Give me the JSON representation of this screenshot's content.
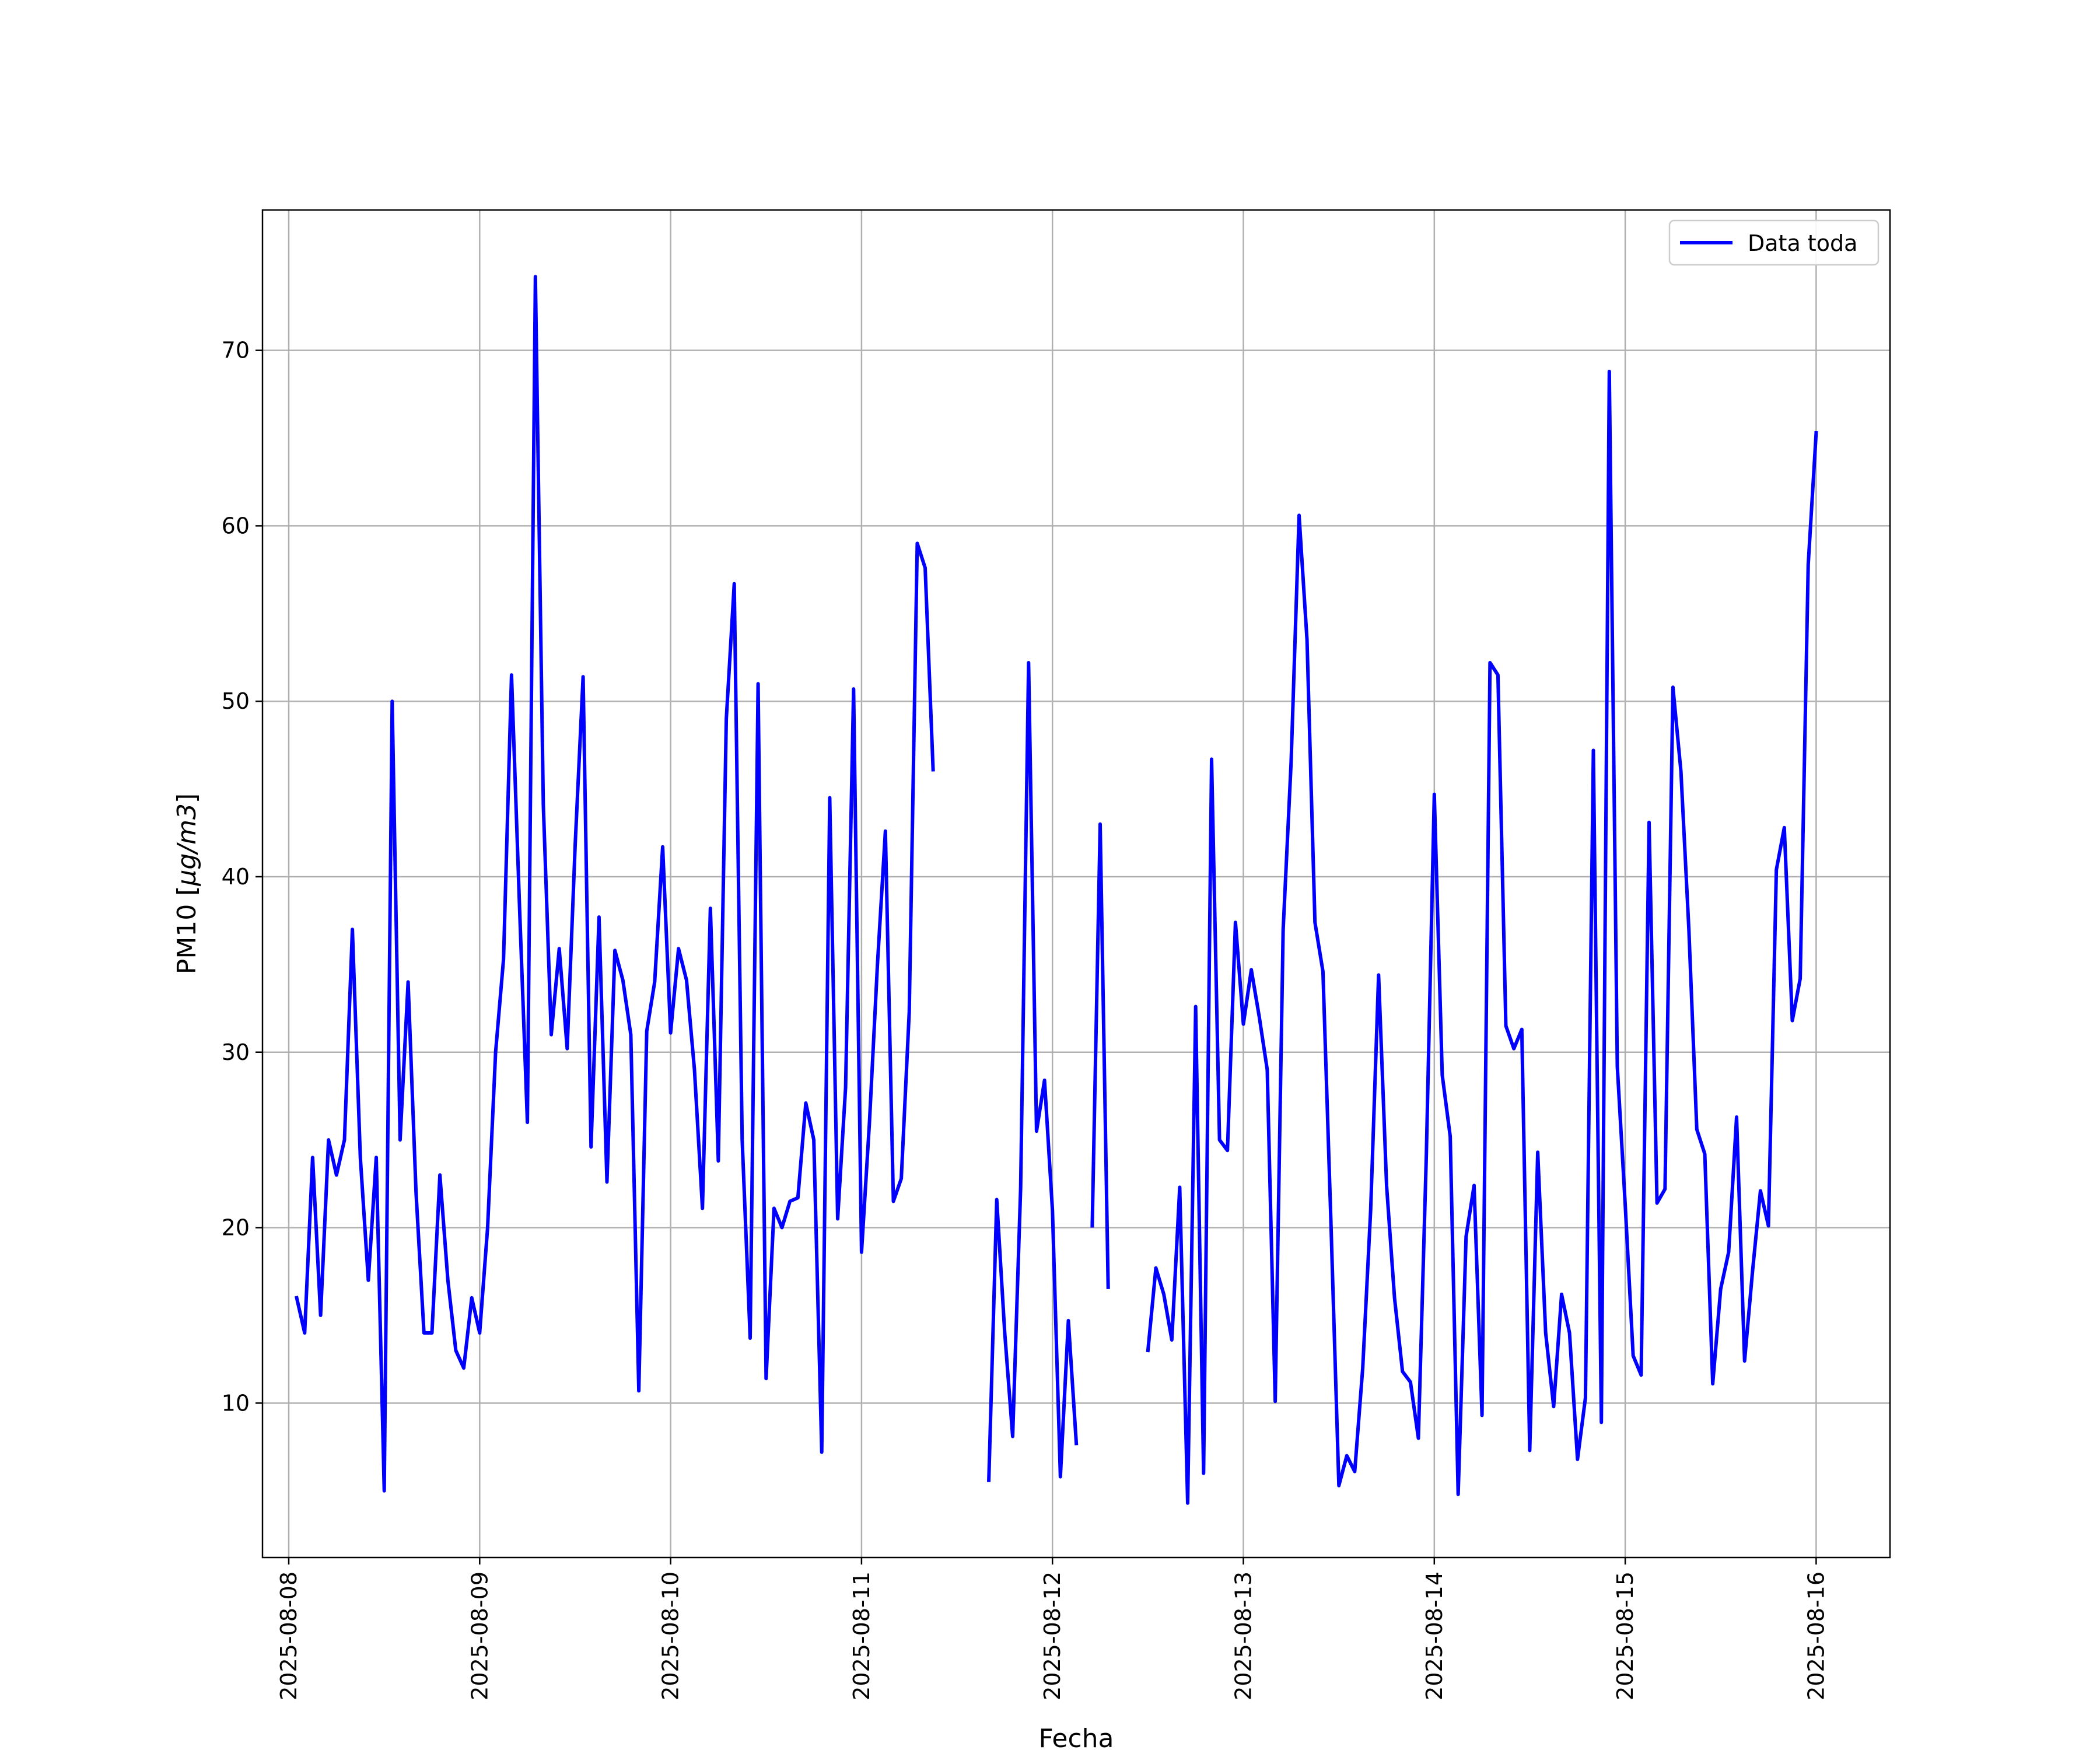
{
  "chart_data": {
    "type": "line",
    "title": "",
    "xlabel": "Fecha",
    "ylabel": "PM10 [μg/m3]",
    "ylabel_base": "PM10 [",
    "ylabel_unit": "μg/m3",
    "ylabel_close": "]",
    "x_ticks": [
      "2025-08-08",
      "2025-08-09",
      "2025-08-10",
      "2025-08-11",
      "2025-08-12",
      "2025-08-13",
      "2025-08-14",
      "2025-08-15",
      "2025-08-16"
    ],
    "x_range": [
      "2025-08-07 20:42",
      "2025-08-16 09:17"
    ],
    "y_ticks": [
      10,
      20,
      30,
      40,
      50,
      60,
      70
    ],
    "ylim": [
      1.2,
      78.0
    ],
    "grid": true,
    "legend_position": "upper right",
    "series": [
      {
        "name": "Data toda",
        "color": "#0000ff",
        "x_start": "2025-08-08 01:00",
        "interval_hours": 1,
        "values": [
          16.0,
          14.0,
          24.0,
          15.0,
          25.0,
          23.0,
          25.0,
          37.0,
          24.0,
          17.0,
          24.0,
          5.0,
          50.0,
          25.0,
          34.0,
          22.0,
          14.0,
          14.0,
          23.0,
          17.0,
          13.0,
          12.0,
          16.0,
          14.0,
          20.0,
          30.0,
          35.3,
          51.5,
          38.4,
          26.0,
          74.2,
          44.1,
          31.0,
          35.9,
          30.2,
          41.8,
          51.4,
          24.6,
          37.7,
          22.6,
          35.8,
          34.1,
          31.0,
          10.7,
          31.2,
          34.0,
          41.7,
          31.1,
          35.9,
          34.1,
          29.0,
          21.1,
          38.2,
          23.8,
          49.0,
          56.7,
          25.0,
          13.7,
          51.0,
          11.4,
          21.1,
          20.0,
          21.5,
          21.7,
          27.1,
          25.0,
          7.2,
          44.5,
          20.5,
          28.0,
          50.7,
          18.6,
          26.0,
          35.0,
          42.6,
          21.5,
          22.8,
          32.3,
          59.0,
          57.6,
          46.1,
          null,
          null,
          null,
          null,
          null,
          null,
          5.6,
          21.6,
          14.0,
          8.1,
          22.3,
          52.2,
          25.5,
          28.4,
          21.0,
          5.8,
          14.7,
          7.7,
          null,
          20.1,
          43.0,
          16.6,
          null,
          null,
          null,
          null,
          13.0,
          17.7,
          16.2,
          13.6,
          22.3,
          4.3,
          32.6,
          6.0,
          46.7,
          25.0,
          24.4,
          37.4,
          31.6,
          34.7,
          32.0,
          29.0,
          10.1,
          37.0,
          46.5,
          60.6,
          53.5,
          37.4,
          34.6,
          20.4,
          5.3,
          7.0,
          6.1,
          12.0,
          21.0,
          34.4,
          22.4,
          16.0,
          11.8,
          11.2,
          8.0,
          24.2,
          44.7,
          28.7,
          25.2,
          4.8,
          19.5,
          22.4,
          9.3,
          52.2,
          51.5,
          31.5,
          30.2,
          31.3,
          7.3,
          24.3,
          14.0,
          9.8,
          16.2,
          14.0,
          6.8,
          10.3,
          47.2,
          8.9,
          68.8,
          29.2,
          21.3,
          12.7,
          11.6,
          43.1,
          21.4,
          22.2,
          50.8,
          46.0,
          37.0,
          25.6,
          24.2,
          11.1,
          16.5,
          18.6,
          26.3,
          12.4,
          17.5,
          22.1,
          20.1,
          40.4,
          42.8,
          31.8,
          34.2,
          57.8,
          65.3
        ]
      }
    ]
  }
}
